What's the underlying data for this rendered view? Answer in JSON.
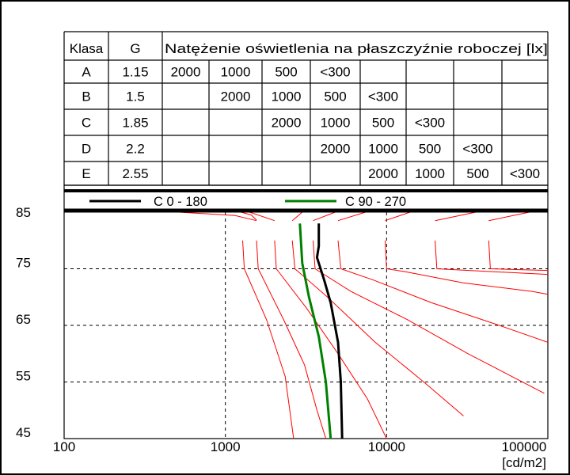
{
  "chart_data": {
    "type": "line",
    "table": {
      "headers": [
        "Klasa",
        "G",
        "Natężenie oświetlenia na płaszczyźnie roboczej [lx]"
      ],
      "rows": [
        {
          "klasa": "A",
          "g": "1.15",
          "cells": [
            "2000",
            "1000",
            "500",
            "<300",
            "",
            "",
            "",
            ""
          ]
        },
        {
          "klasa": "B",
          "g": "1.5",
          "cells": [
            "",
            "2000",
            "1000",
            "500",
            "<300",
            "",
            "",
            ""
          ]
        },
        {
          "klasa": "C",
          "g": "1.85",
          "cells": [
            "",
            "",
            "2000",
            "1000",
            "500",
            "<300",
            "",
            ""
          ]
        },
        {
          "klasa": "D",
          "g": "2.2",
          "cells": [
            "",
            "",
            "",
            "2000",
            "1000",
            "500",
            "<300",
            ""
          ]
        },
        {
          "klasa": "E",
          "g": "2.55",
          "cells": [
            "",
            "",
            "",
            "",
            "2000",
            "1000",
            "500",
            "<300"
          ]
        }
      ]
    },
    "x_scale": "log",
    "xlim": [
      100,
      100000
    ],
    "x_ticks": [
      "100",
      "1000",
      "10000",
      "100000"
    ],
    "x_unit": "[cd/m2]",
    "ylim": [
      45,
      85
    ],
    "y_ticks": [
      "85",
      "75",
      "65",
      "55",
      "45"
    ],
    "grid": "dashed",
    "legend": [
      {
        "label": "C 0 - 180",
        "color": "#000000"
      },
      {
        "label": "C 90 - 270",
        "color": "#008000"
      }
    ],
    "series": [
      {
        "name": "C 0 - 180",
        "color": "#000000",
        "points": [
          [
            5300,
            45
          ],
          [
            5200,
            55
          ],
          [
            5000,
            62
          ],
          [
            4500,
            69
          ],
          [
            4100,
            73
          ],
          [
            3700,
            77
          ],
          [
            3800,
            79
          ],
          [
            3800,
            83
          ]
        ]
      },
      {
        "name": "C 90 - 270",
        "color": "#008000",
        "points": [
          [
            4500,
            45
          ],
          [
            4200,
            55
          ],
          [
            3800,
            63
          ],
          [
            3300,
            70
          ],
          [
            3000,
            76
          ],
          [
            2900,
            83
          ]
        ]
      }
    ],
    "limit_curves": {
      "color": "#ff0000",
      "curves": [
        [
          [
            1280,
            80
          ],
          [
            1310,
            75
          ],
          [
            1800,
            66
          ],
          [
            2350,
            56
          ],
          [
            2650,
            45
          ]
        ],
        [
          [
            1560,
            80
          ],
          [
            1600,
            75
          ],
          [
            2300,
            66
          ],
          [
            3100,
            58
          ],
          [
            3700,
            50
          ],
          [
            4200,
            45
          ]
        ],
        [
          [
            2020,
            80
          ],
          [
            2070,
            75
          ],
          [
            3200,
            68
          ],
          [
            5000,
            60
          ],
          [
            7600,
            52
          ],
          [
            10000,
            45
          ]
        ],
        [
          [
            2600,
            80
          ],
          [
            2700,
            75
          ],
          [
            4300,
            70
          ],
          [
            8500,
            62
          ],
          [
            17000,
            55
          ],
          [
            30000,
            49
          ]
        ],
        [
          [
            3500,
            80
          ],
          [
            3600,
            75
          ],
          [
            6000,
            71
          ],
          [
            13500,
            66
          ],
          [
            32000,
            60
          ],
          [
            95000,
            53
          ]
        ],
        [
          [
            5000,
            80
          ],
          [
            5200,
            75
          ],
          [
            8300,
            73
          ],
          [
            19000,
            69
          ],
          [
            50000,
            65
          ],
          [
            100000,
            62
          ]
        ],
        [
          [
            9800,
            80
          ],
          [
            10000,
            75
          ],
          [
            13000,
            74.5
          ],
          [
            30000,
            72.5
          ],
          [
            80000,
            71
          ],
          [
            100000,
            70.5
          ]
        ],
        [
          [
            20000,
            80
          ],
          [
            20500,
            75
          ],
          [
            45000,
            74.5
          ],
          [
            100000,
            74
          ]
        ],
        [
          [
            43000,
            80
          ],
          [
            44000,
            75
          ],
          [
            100000,
            74.7
          ]
        ]
      ],
      "top_curves": [
        [
          [
            400,
            85.2
          ],
          [
            1150,
            84.4
          ],
          [
            1560,
            83.5
          ]
        ],
        [
          [
            1150,
            85.3
          ],
          [
            1450,
            84.5
          ],
          [
            1560,
            83.6
          ]
        ],
        [
          [
            1350,
            85.2
          ],
          [
            2020,
            83.5
          ]
        ],
        [
          [
            2600,
            83.5
          ],
          [
            3000,
            85
          ]
        ],
        [
          [
            3500,
            83.5
          ],
          [
            5000,
            85.2
          ]
        ],
        [
          [
            5000,
            83.5
          ],
          [
            8000,
            85.3
          ]
        ],
        [
          [
            9800,
            83.5
          ],
          [
            15000,
            85.3
          ]
        ],
        [
          [
            20000,
            83.5
          ],
          [
            40000,
            85.3
          ]
        ],
        [
          [
            43000,
            83.5
          ],
          [
            80000,
            85.1
          ]
        ]
      ]
    }
  }
}
